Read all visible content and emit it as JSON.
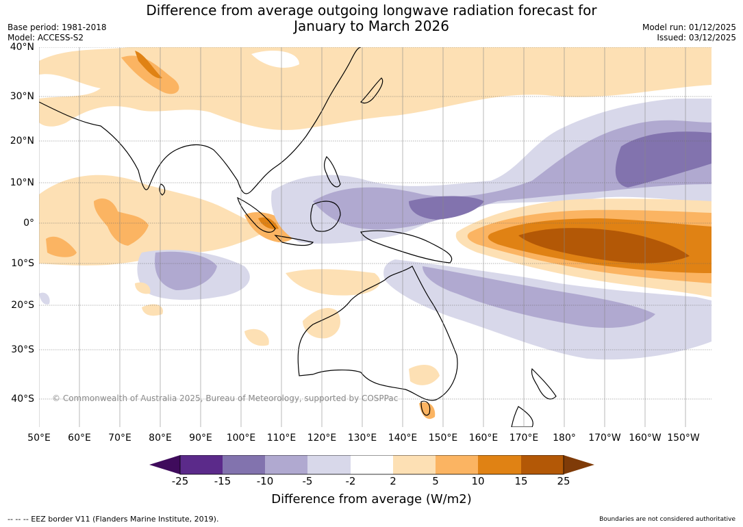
{
  "title": {
    "line1": "Difference from average outgoing longwave radiation forecast for",
    "line2": "January to March 2026"
  },
  "meta_left": {
    "base_period": "Base period: 1981-2018",
    "model": "Model: ACCESS-S2"
  },
  "meta_right": {
    "model_run": "Model run: 01/12/2025",
    "issued": "Issued: 03/12/2025"
  },
  "lat_labels": [
    "40°N",
    "30°N",
    "20°N",
    "10°N",
    "0°",
    "10°S",
    "20°S",
    "30°S",
    "40°S"
  ],
  "lon_labels": [
    "50°E",
    "60°E",
    "70°E",
    "80°E",
    "90°E",
    "100°E",
    "110°E",
    "120°E",
    "130°E",
    "140°E",
    "150°E",
    "160°E",
    "170°E",
    "180°",
    "170°W",
    "160°W",
    "150°W"
  ],
  "copyright": "© Commonwealth of Australia 2025, Bureau of Meteorology, supported by COSPPac",
  "colorbar": {
    "title": "Difference from average (W/m2)",
    "ticks": [
      "-25",
      "-15",
      "-10",
      "-5",
      "-2",
      "2",
      "5",
      "10",
      "15",
      "25"
    ],
    "colors": [
      "#3f0b5c",
      "#5b2a8a",
      "#8273ae",
      "#b0a9d0",
      "#d8d8ea",
      "#ffffff",
      "#fde0b4",
      "#fbb462",
      "#e08214",
      "#b35806",
      "#7f3b08"
    ]
  },
  "footer": {
    "left": "--  --  -- EEZ border V11 (Flanders Marine Institute, 2019).",
    "right": "Boundaries are not considered authoritative"
  }
}
